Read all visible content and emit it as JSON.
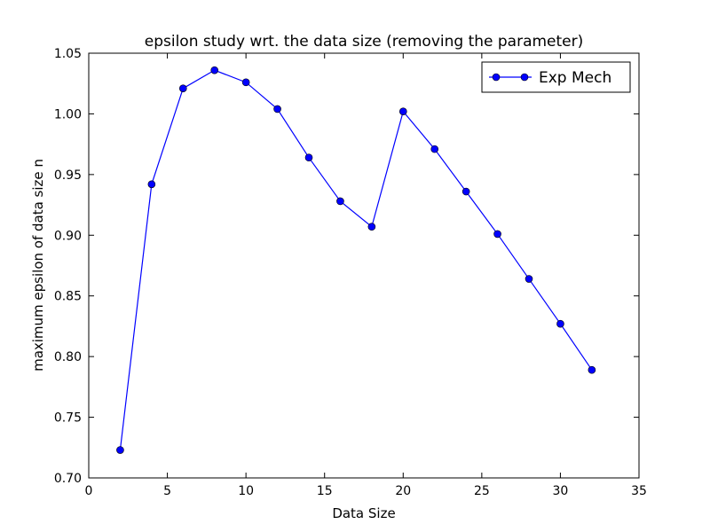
{
  "chart_data": {
    "type": "line",
    "title": "epsilon study wrt. the data size (removing the parameter)",
    "xlabel": "Data Size",
    "ylabel": "maximum epsilon of data size n",
    "xlim": [
      0,
      35
    ],
    "ylim": [
      0.7,
      1.05
    ],
    "xticks": [
      0,
      5,
      10,
      15,
      20,
      25,
      30,
      35
    ],
    "yticks": [
      0.7,
      0.75,
      0.8,
      0.85,
      0.9,
      0.95,
      1.0,
      1.05
    ],
    "xtick_labels": [
      "0",
      "5",
      "10",
      "15",
      "20",
      "25",
      "30",
      "35"
    ],
    "ytick_labels": [
      "0.70",
      "0.75",
      "0.80",
      "0.85",
      "0.90",
      "0.95",
      "1.00",
      "1.05"
    ],
    "grid": false,
    "legend_position": "top-right",
    "series": [
      {
        "name": "Exp Mech",
        "color": "#0000ff",
        "marker": "circle",
        "x": [
          2,
          4,
          6,
          8,
          10,
          12,
          14,
          16,
          18,
          20,
          22,
          24,
          26,
          28,
          30,
          32
        ],
        "y": [
          0.723,
          0.942,
          1.021,
          1.036,
          1.026,
          1.004,
          0.964,
          0.928,
          0.907,
          1.002,
          0.971,
          0.936,
          0.901,
          0.864,
          0.827,
          0.789
        ]
      }
    ]
  }
}
